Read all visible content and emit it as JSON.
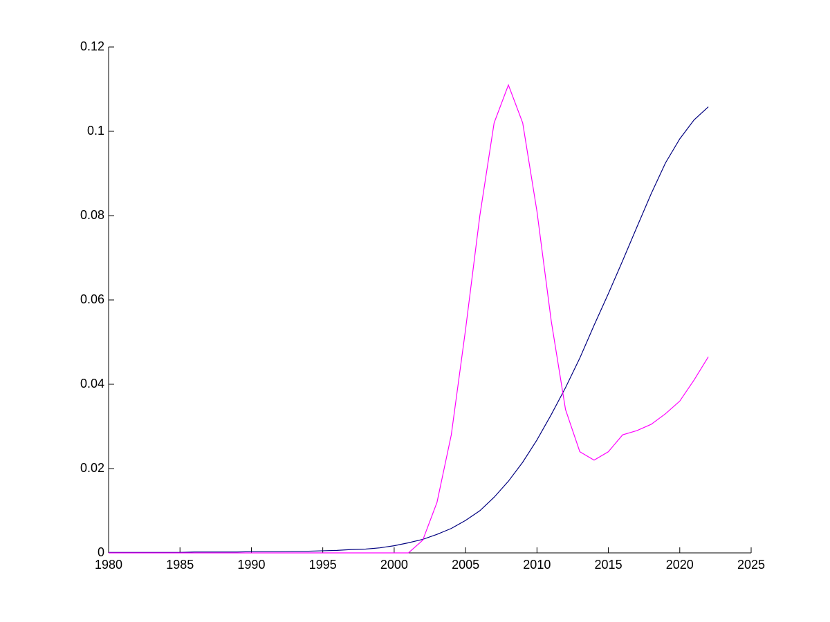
{
  "chart_data": {
    "type": "line",
    "x": [
      1980,
      1981,
      1982,
      1983,
      1984,
      1985,
      1986,
      1987,
      1988,
      1989,
      1990,
      1991,
      1992,
      1993,
      1994,
      1995,
      1996,
      1997,
      1998,
      1999,
      2000,
      2001,
      2002,
      2003,
      2004,
      2005,
      2006,
      2007,
      2008,
      2009,
      2010,
      2011,
      2012,
      2013,
      2014,
      2015,
      2016,
      2017,
      2018,
      2019,
      2020,
      2021,
      2022
    ],
    "series": [
      {
        "color": "#00007f",
        "values": [
          0.0001,
          0.0001,
          0.0001,
          0.0001,
          0.0001,
          0.0001,
          0.0002,
          0.0002,
          0.0002,
          0.0002,
          0.0003,
          0.0003,
          0.0003,
          0.0004,
          0.0004,
          0.0005,
          0.0006,
          0.0008,
          0.0009,
          0.0012,
          0.0017,
          0.0024,
          0.0032,
          0.0044,
          0.0058,
          0.0077,
          0.01,
          0.0132,
          0.017,
          0.0215,
          0.0268,
          0.0328,
          0.0392,
          0.0462,
          0.054,
          0.0615,
          0.0693,
          0.0773,
          0.0852,
          0.0925,
          0.0982,
          0.1027,
          0.1058
        ]
      },
      {
        "color": "#ff00ff",
        "values": [
          0,
          0,
          0,
          0,
          0,
          0,
          0,
          0,
          0,
          0,
          0,
          0,
          0,
          0,
          0,
          0,
          0,
          0,
          0,
          0,
          0,
          0,
          0.003,
          0.012,
          0.028,
          0.053,
          0.08,
          0.102,
          0.111,
          0.102,
          0.081,
          0.055,
          0.034,
          0.024,
          0.022,
          0.024,
          0.028,
          0.029,
          0.0305,
          0.033,
          0.036,
          0.041,
          0.0465
        ]
      }
    ],
    "xlim": [
      1980,
      2025
    ],
    "xticks": [
      1980,
      1985,
      1990,
      1995,
      2000,
      2005,
      2010,
      2015,
      2020,
      2025
    ],
    "ylim": [
      0,
      0.12
    ],
    "yticks": [
      0,
      0.02,
      0.04,
      0.06,
      0.08,
      0.1,
      0.12
    ]
  }
}
